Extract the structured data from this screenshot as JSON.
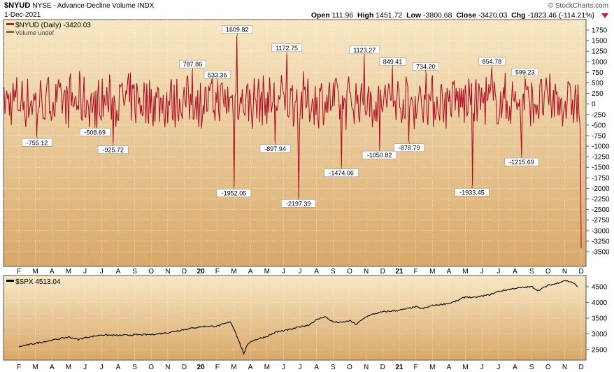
{
  "header": {
    "symbol": "$NYUD",
    "description": "NYSE - Advance-Decline Volume INDX",
    "date": "1-Dec-2021",
    "watermark": "© StockCharts.com",
    "stats": {
      "open_label": "Open",
      "open": "111.96",
      "high_label": "High",
      "high": "1451.72",
      "low_label": "Low",
      "low": "-3800.68",
      "close_label": "Close",
      "close": "-3420.03",
      "chg_label": "Chg",
      "chg": "-1823.46 (-114.21%)"
    }
  },
  "legend": {
    "upper_series": "$NYUD (Daily) -3420.03",
    "upper_volume": "Volume undef",
    "lower_series": "$SPX 4513.04"
  },
  "colors": {
    "background_top": "#f7e7c4",
    "background_bottom": "#d9a869",
    "nyud_line": "#d2142e",
    "nyud_thin": "#3a0a0a",
    "spx_line": "#000000",
    "grid": "#ffffff"
  },
  "chart_data": [
    {
      "type": "line",
      "series_name": "$NYUD (Daily)",
      "ylim": [
        -3500,
        1750
      ],
      "yticks": [
        1750,
        1500,
        1250,
        1000,
        750,
        500,
        250,
        0,
        -250,
        -500,
        -750,
        -1000,
        -1250,
        -1500,
        -1750,
        -2000,
        -2250,
        -2500,
        -2750,
        -3000,
        -3250,
        -3500
      ],
      "x_ticks": [
        "F",
        "M",
        "A",
        "M",
        "J",
        "J",
        "A",
        "S",
        "O",
        "N",
        "D",
        "20",
        "F",
        "M",
        "A",
        "M",
        "J",
        "J",
        "A",
        "S",
        "O",
        "N",
        "D",
        "21",
        "F",
        "M",
        "A",
        "M",
        "J",
        "J",
        "A",
        "S",
        "O",
        "N",
        "D"
      ],
      "x_month_index": [
        0,
        1,
        2,
        3,
        4,
        5,
        6,
        7,
        8,
        9,
        10,
        11,
        12,
        13,
        14,
        15,
        16,
        17,
        18,
        19,
        20,
        21,
        22,
        23,
        24,
        25,
        26,
        27,
        28,
        29,
        30,
        31,
        32,
        33,
        34
      ],
      "annotations": [
        {
          "label": "-755.12",
          "month": 1.1,
          "value": -755.12
        },
        {
          "label": "-508.69",
          "month": 4.6,
          "value": -508.69
        },
        {
          "label": "-925.72",
          "month": 5.7,
          "value": -925.72
        },
        {
          "label": "787.86",
          "month": 10.5,
          "value": 787.86
        },
        {
          "label": "533.36",
          "month": 12.0,
          "value": 533.36
        },
        {
          "label": "1609.82",
          "month": 13.2,
          "value": 1609.82
        },
        {
          "label": "-1952.05",
          "month": 13.0,
          "value": -1952.05
        },
        {
          "label": "-897.94",
          "month": 15.5,
          "value": -897.94
        },
        {
          "label": "1172.75",
          "month": 16.2,
          "value": 1172.75
        },
        {
          "label": "-2197.39",
          "month": 16.9,
          "value": -2197.39
        },
        {
          "label": "-1474.06",
          "month": 19.5,
          "value": -1474.06
        },
        {
          "label": "1123.27",
          "month": 20.9,
          "value": 1123.27
        },
        {
          "label": "-1050.82",
          "month": 21.8,
          "value": -1050.82
        },
        {
          "label": "849.41",
          "month": 22.6,
          "value": 849.41
        },
        {
          "label": "-878.79",
          "month": 23.6,
          "value": -878.79
        },
        {
          "label": "734.20",
          "month": 24.6,
          "value": 734.2
        },
        {
          "label": "-1933.45",
          "month": 27.4,
          "value": -1933.45
        },
        {
          "label": "854.78",
          "month": 28.6,
          "value": 854.78
        },
        {
          "label": "599.23",
          "month": 30.6,
          "value": 599.23
        },
        {
          "label": "-1215.69",
          "month": 30.4,
          "value": -1215.69
        }
      ],
      "last_value": -3420.03
    },
    {
      "type": "line",
      "series_name": "$SPX",
      "ylim": [
        2250,
        4750
      ],
      "yticks": [
        4500,
        4000,
        3500,
        3000,
        2500
      ],
      "x_ticks": [
        "F",
        "M",
        "A",
        "M",
        "J",
        "J",
        "A",
        "S",
        "O",
        "N",
        "D",
        "20",
        "F",
        "M",
        "A",
        "M",
        "J",
        "J",
        "A",
        "S",
        "O",
        "N",
        "D",
        "21",
        "F",
        "M",
        "A",
        "M",
        "J",
        "J",
        "A",
        "S",
        "O",
        "N",
        "D"
      ],
      "points": [
        [
          0,
          2590
        ],
        [
          1,
          2700
        ],
        [
          2,
          2800
        ],
        [
          3,
          2900
        ],
        [
          3.6,
          2820
        ],
        [
          4,
          2880
        ],
        [
          5,
          2970
        ],
        [
          6,
          2950
        ],
        [
          7,
          2970
        ],
        [
          8,
          2980
        ],
        [
          9,
          3040
        ],
        [
          10,
          3140
        ],
        [
          11,
          3230
        ],
        [
          12,
          3250
        ],
        [
          12.8,
          3380
        ],
        [
          13.1,
          3050
        ],
        [
          13.4,
          2640
        ],
        [
          13.6,
          2380
        ],
        [
          13.8,
          2620
        ],
        [
          14,
          2760
        ],
        [
          14.5,
          2850
        ],
        [
          15,
          2920
        ],
        [
          15.5,
          3050
        ],
        [
          16,
          3100
        ],
        [
          16.5,
          3150
        ],
        [
          17,
          3230
        ],
        [
          17.5,
          3280
        ],
        [
          18,
          3450
        ],
        [
          18.5,
          3550
        ],
        [
          19,
          3380
        ],
        [
          19.5,
          3360
        ],
        [
          20,
          3420
        ],
        [
          20.4,
          3300
        ],
        [
          21,
          3550
        ],
        [
          21.5,
          3640
        ],
        [
          22,
          3700
        ],
        [
          23,
          3750
        ],
        [
          24,
          3860
        ],
        [
          24.4,
          3800
        ],
        [
          25,
          3900
        ],
        [
          26,
          3970
        ],
        [
          26.5,
          4050
        ],
        [
          27,
          4180
        ],
        [
          27.5,
          4150
        ],
        [
          28,
          4200
        ],
        [
          28.5,
          4250
        ],
        [
          29,
          4350
        ],
        [
          30,
          4450
        ],
        [
          31,
          4500
        ],
        [
          31.4,
          4380
        ],
        [
          32,
          4540
        ],
        [
          32.5,
          4600
        ],
        [
          33,
          4700
        ],
        [
          33.4,
          4650
        ],
        [
          33.8,
          4513.04
        ]
      ],
      "last_value": 4513.04
    }
  ]
}
